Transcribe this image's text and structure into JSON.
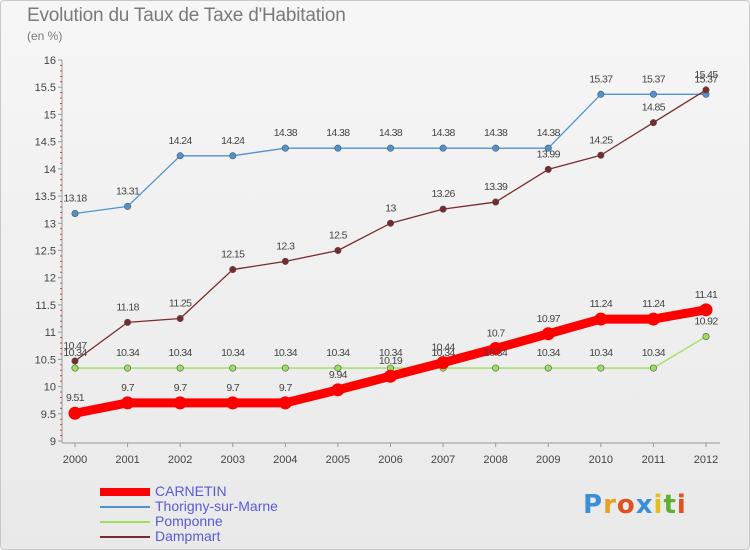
{
  "header": {
    "title": "Evolution du Taux de Taxe d'Habitation",
    "subtitle": "(en %)"
  },
  "logo": {
    "letters": [
      {
        "char": "P",
        "color": "#3a8fd8"
      },
      {
        "char": "r",
        "color": "#e8a020"
      },
      {
        "char": "o",
        "color": "#e05020"
      },
      {
        "char": "x",
        "color": "#3a8fd8"
      },
      {
        "char": "i",
        "color": "#e0c020"
      },
      {
        "char": "t",
        "color": "#60b030"
      },
      {
        "char": "i",
        "color": "#e05020"
      }
    ]
  },
  "chart_data": {
    "type": "line",
    "title": "Evolution du Taux de Taxe d'Habitation",
    "subtitle": "(en %)",
    "xlabel": "",
    "ylabel": "",
    "ylim": [
      9,
      16
    ],
    "yticks": [
      "9",
      "9.5",
      "10",
      "10.5",
      "11",
      "11.5",
      "12",
      "12.5",
      "13",
      "13.5",
      "14",
      "14.5",
      "15",
      "15.5",
      "16"
    ],
    "categories": [
      "2000",
      "2001",
      "2002",
      "2003",
      "2004",
      "2005",
      "2006",
      "2007",
      "2008",
      "2009",
      "2010",
      "2011",
      "2012"
    ],
    "grid": "y-dashed-red-ticks",
    "legend_position": "bottom-left",
    "series": [
      {
        "name": "CARNETIN",
        "color": "#ff0000",
        "style": "thick",
        "values": [
          9.51,
          9.7,
          9.7,
          9.7,
          9.7,
          9.94,
          10.19,
          10.44,
          10.7,
          10.97,
          11.24,
          11.24,
          11.41
        ],
        "labels": [
          "9.51",
          "9.7",
          "9.7",
          "9.7",
          "9.7",
          "9.94",
          "10.19",
          "10.44",
          "10.7",
          "10.97",
          "11.24",
          "11.24",
          "11.41"
        ]
      },
      {
        "name": "Thorigny-sur-Marne",
        "color": "#4f92d0",
        "style": "thin",
        "values": [
          13.18,
          13.31,
          14.24,
          14.24,
          14.38,
          14.38,
          14.38,
          14.38,
          14.38,
          14.38,
          15.37,
          15.37,
          15.37
        ],
        "labels": [
          "13.18",
          "13.31",
          "14.24",
          "14.24",
          "14.38",
          "14.38",
          "14.38",
          "14.38",
          "14.38",
          "14.38",
          "15.37",
          "15.37",
          "15.37"
        ]
      },
      {
        "name": "Pomponne",
        "color": "#99e05c",
        "style": "thin",
        "values": [
          10.34,
          10.34,
          10.34,
          10.34,
          10.34,
          10.34,
          10.34,
          10.34,
          10.34,
          10.34,
          10.34,
          10.34,
          10.92
        ],
        "labels": [
          "10.34",
          "10.34",
          "10.34",
          "10.34",
          "10.34",
          "10.34",
          "10.34",
          "10.34",
          "10.34",
          "10.34",
          "10.34",
          "10.34",
          "10.92"
        ]
      },
      {
        "name": "Dampmart",
        "color": "#7a2a2a",
        "style": "thin",
        "values": [
          10.47,
          11.18,
          11.25,
          12.15,
          12.3,
          12.5,
          13,
          13.26,
          13.39,
          13.99,
          14.25,
          14.85,
          15.45
        ],
        "labels": [
          "10.47",
          "11.18",
          "11.25",
          "12.15",
          "12.3",
          "12.5",
          "13",
          "13.26",
          "13.39",
          "13.99",
          "14.25",
          "14.85",
          "15.45"
        ]
      }
    ]
  }
}
